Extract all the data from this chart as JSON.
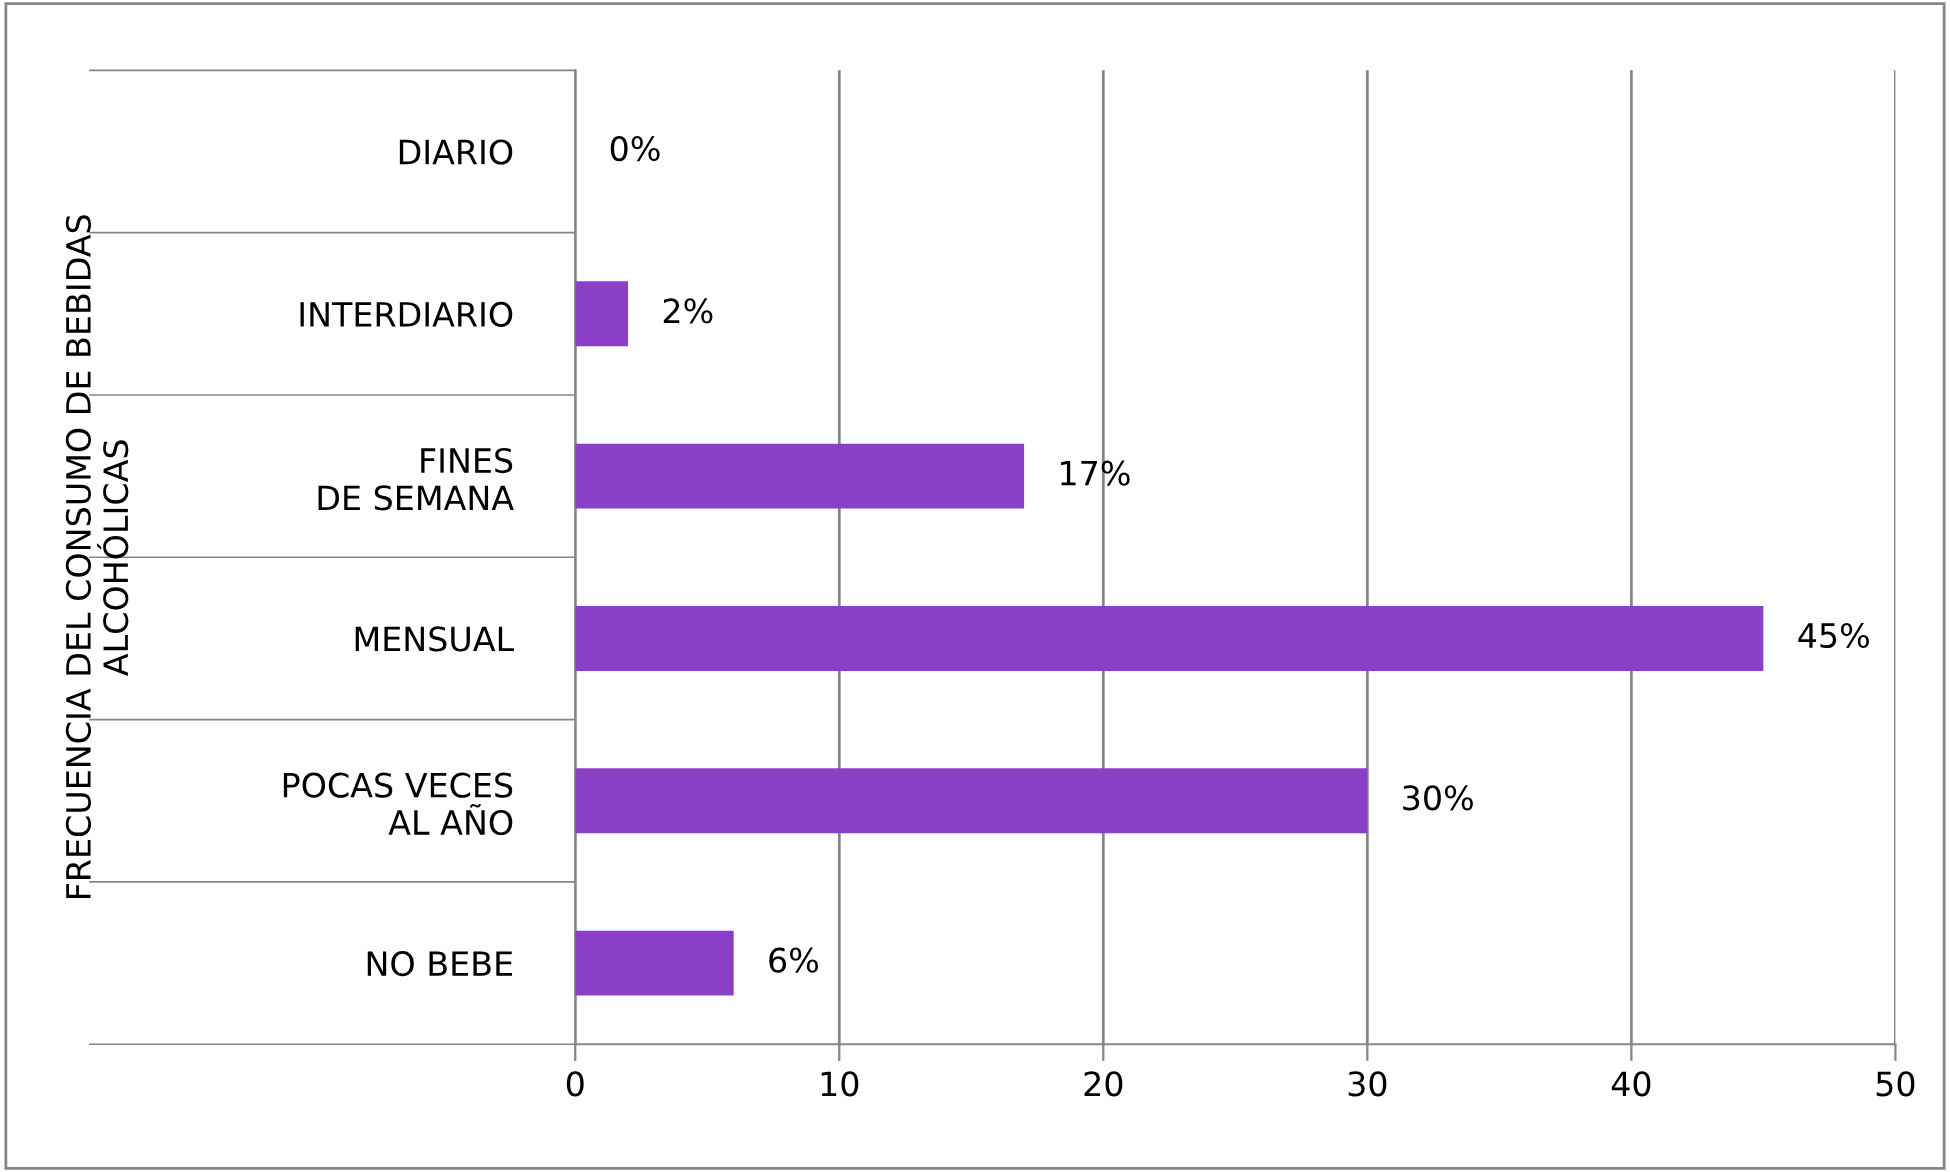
{
  "chart_data": {
    "type": "bar",
    "orientation": "horizontal",
    "ylabel": "FRECUENCIA DEL CONSUMO DE BEBIDAS\nALCOHÓLICAS",
    "categories": [
      "DIARIO",
      "INTERDIARIO",
      "FINES\nDE SEMANA",
      "MENSUAL",
      "POCAS VECES\nAL AÑO",
      "NO BEBE"
    ],
    "values": [
      0,
      2,
      17,
      45,
      30,
      6
    ],
    "value_labels": [
      "0%",
      "2%",
      "17%",
      "45%",
      "30%",
      "6%"
    ],
    "color": "#8b3fc6",
    "xlim": [
      0,
      50
    ],
    "xticks": [
      0,
      10,
      20,
      30,
      40,
      50
    ],
    "grid": "x",
    "legend": false
  }
}
